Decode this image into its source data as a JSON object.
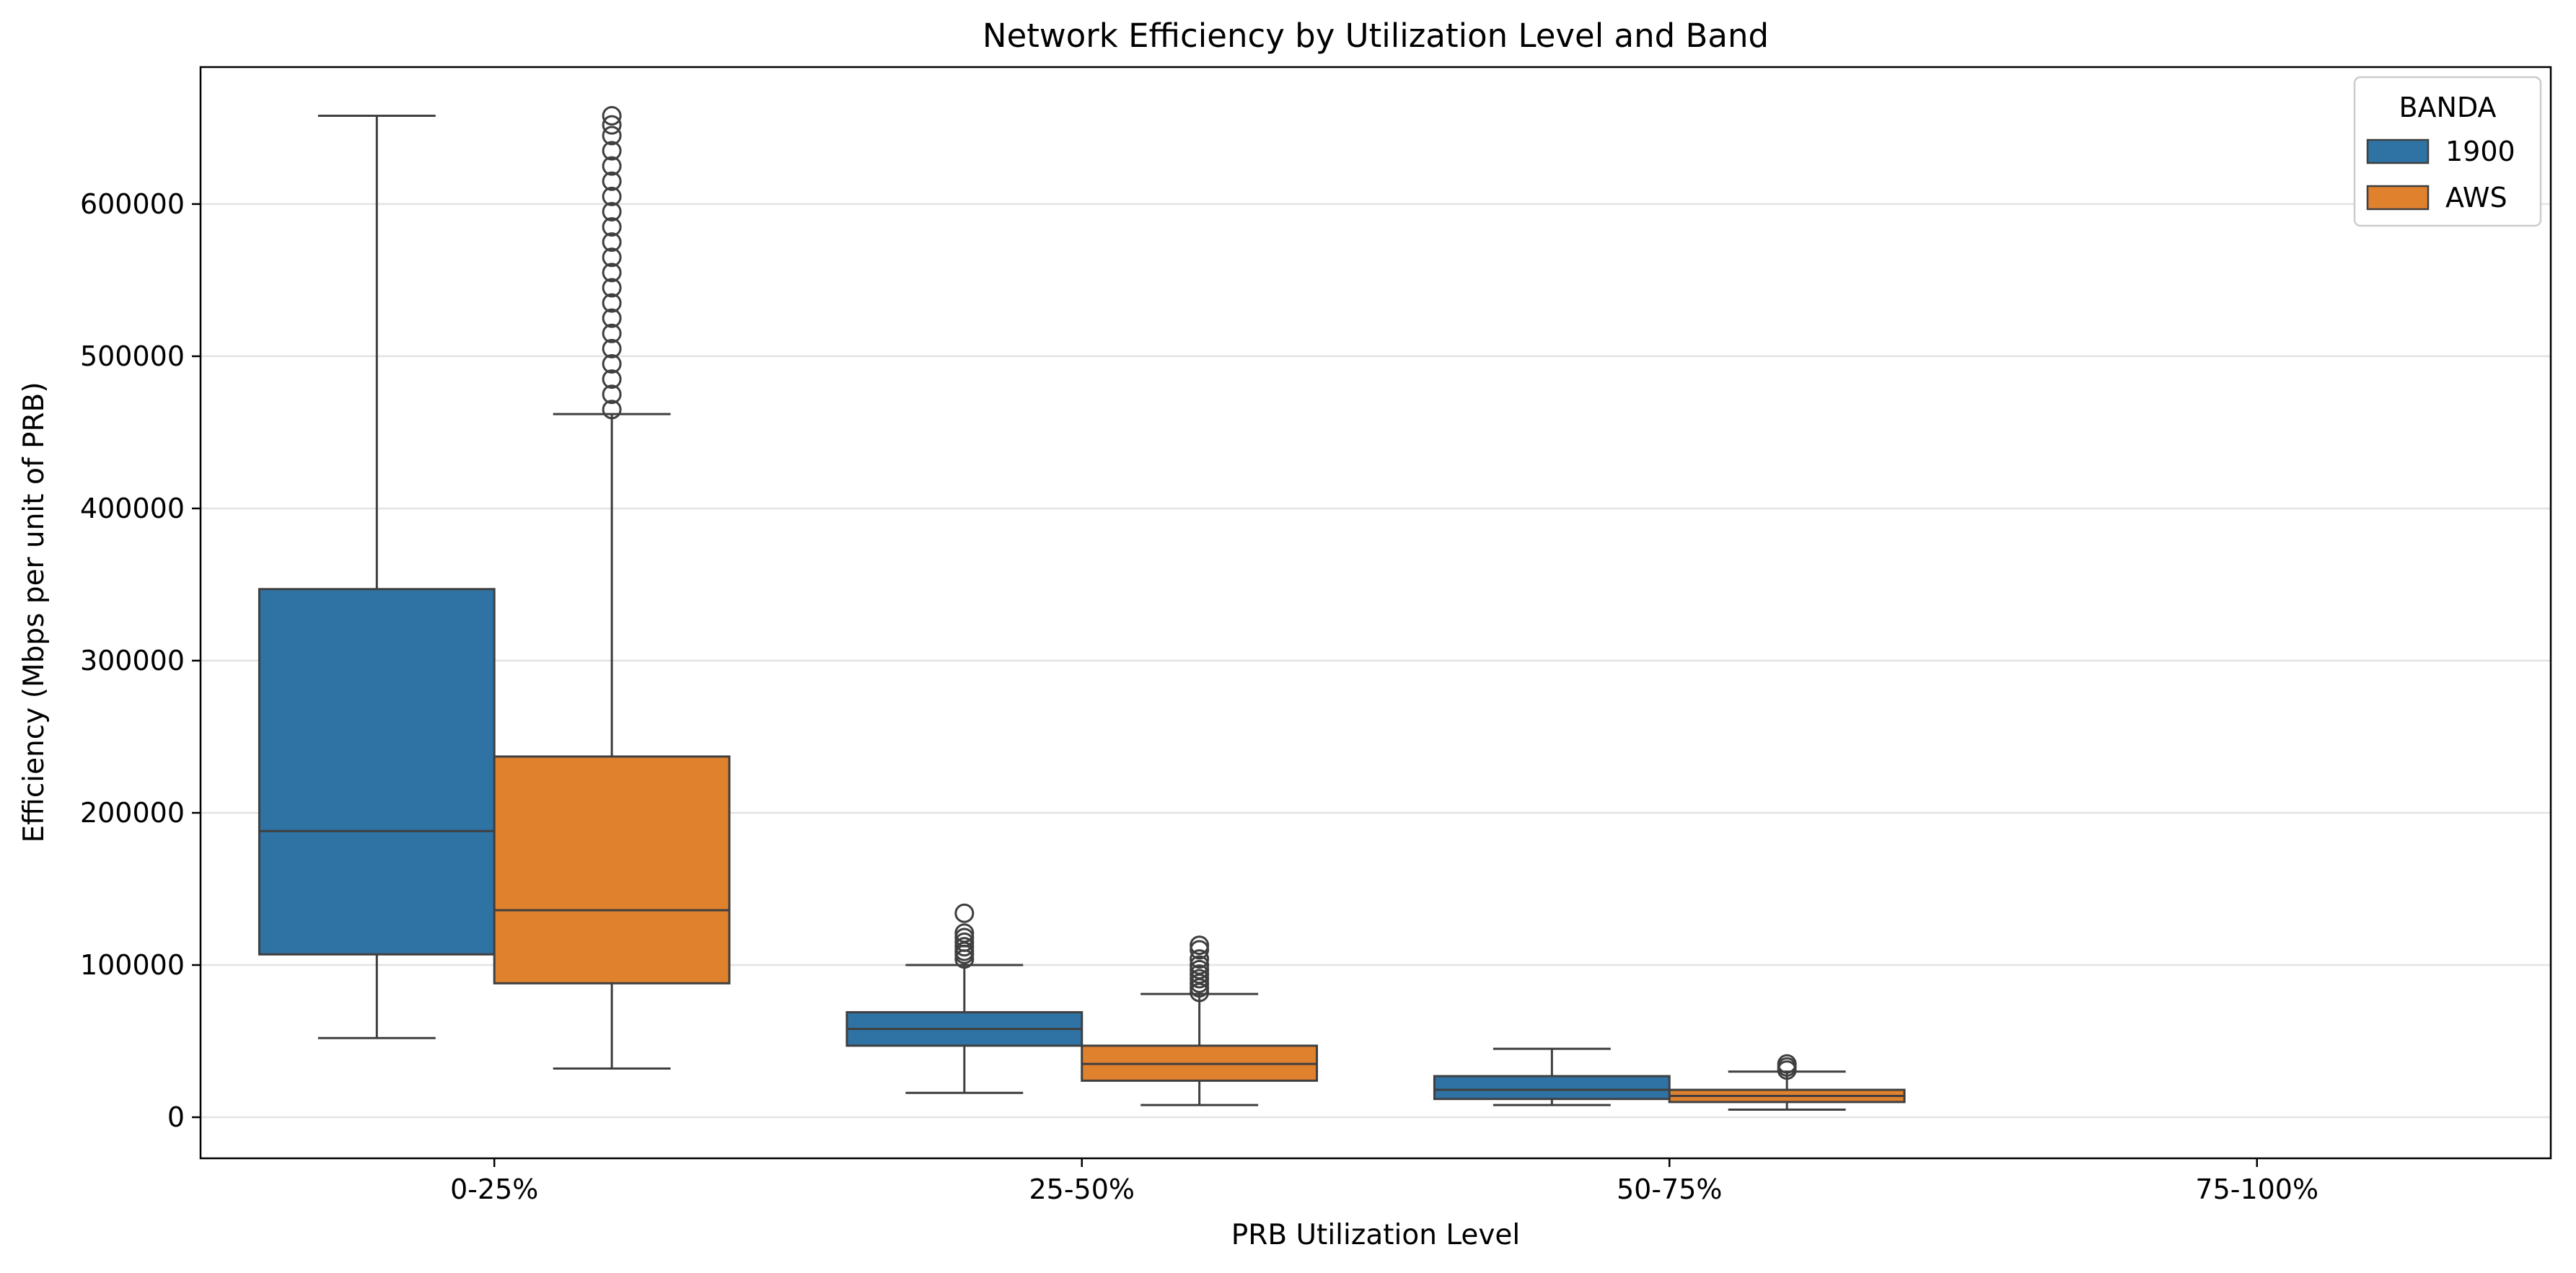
{
  "chart_data": {
    "type": "box",
    "title": "Network Efficiency by Utilization Level and Band",
    "xlabel": "PRB Utilization Level",
    "ylabel": "Efficiency (Mbps per unit of PRB)",
    "categories": [
      "0-25%",
      "25-50%",
      "50-75%",
      "75-100%"
    ],
    "ylim": [
      -27000,
      690000
    ],
    "yticks": [
      0,
      100000,
      200000,
      300000,
      400000,
      500000,
      600000
    ],
    "ytick_labels": [
      "0",
      "100000",
      "200000",
      "300000",
      "400000",
      "500000",
      "600000"
    ],
    "grid": "horizontal",
    "legend": {
      "title": "BANDA",
      "placement": "top-right"
    },
    "series": [
      {
        "name": "1900",
        "color": "#2f73a5",
        "boxes": [
          {
            "category": "0-25%",
            "whisker_low": 52000,
            "q1": 107000,
            "median": 188000,
            "q3": 347000,
            "whisker_high": 658000,
            "outliers": []
          },
          {
            "category": "25-50%",
            "whisker_low": 16000,
            "q1": 47000,
            "median": 58000,
            "q3": 69000,
            "whisker_high": 100000,
            "outliers": [
              104000,
              107000,
              109000,
              112000,
              115000,
              118000,
              121000,
              134000
            ]
          },
          {
            "category": "50-75%",
            "whisker_low": 8000,
            "q1": 12000,
            "median": 18000,
            "q3": 27000,
            "whisker_high": 45000,
            "outliers": []
          }
        ]
      },
      {
        "name": "AWS",
        "color": "#e0812e",
        "boxes": [
          {
            "category": "0-25%",
            "whisker_low": 32000,
            "q1": 88000,
            "median": 136000,
            "q3": 237000,
            "whisker_high": 462000,
            "outliers": [
              465000,
              475000,
              485000,
              495000,
              505000,
              515000,
              525000,
              535000,
              545000,
              555000,
              565000,
              575000,
              585000,
              595000,
              605000,
              615000,
              625000,
              635000,
              645000,
              652000,
              658000
            ]
          },
          {
            "category": "25-50%",
            "whisker_low": 8000,
            "q1": 24000,
            "median": 35000,
            "q3": 47000,
            "whisker_high": 81000,
            "outliers": [
              82000,
              85000,
              88000,
              91000,
              94000,
              97000,
              100000,
              104000,
              110000,
              113000
            ]
          },
          {
            "category": "50-75%",
            "whisker_low": 5000,
            "q1": 10000,
            "median": 14000,
            "q3": 18000,
            "whisker_high": 30000,
            "outliers": [
              31000,
              33000,
              35000
            ]
          }
        ]
      }
    ]
  }
}
